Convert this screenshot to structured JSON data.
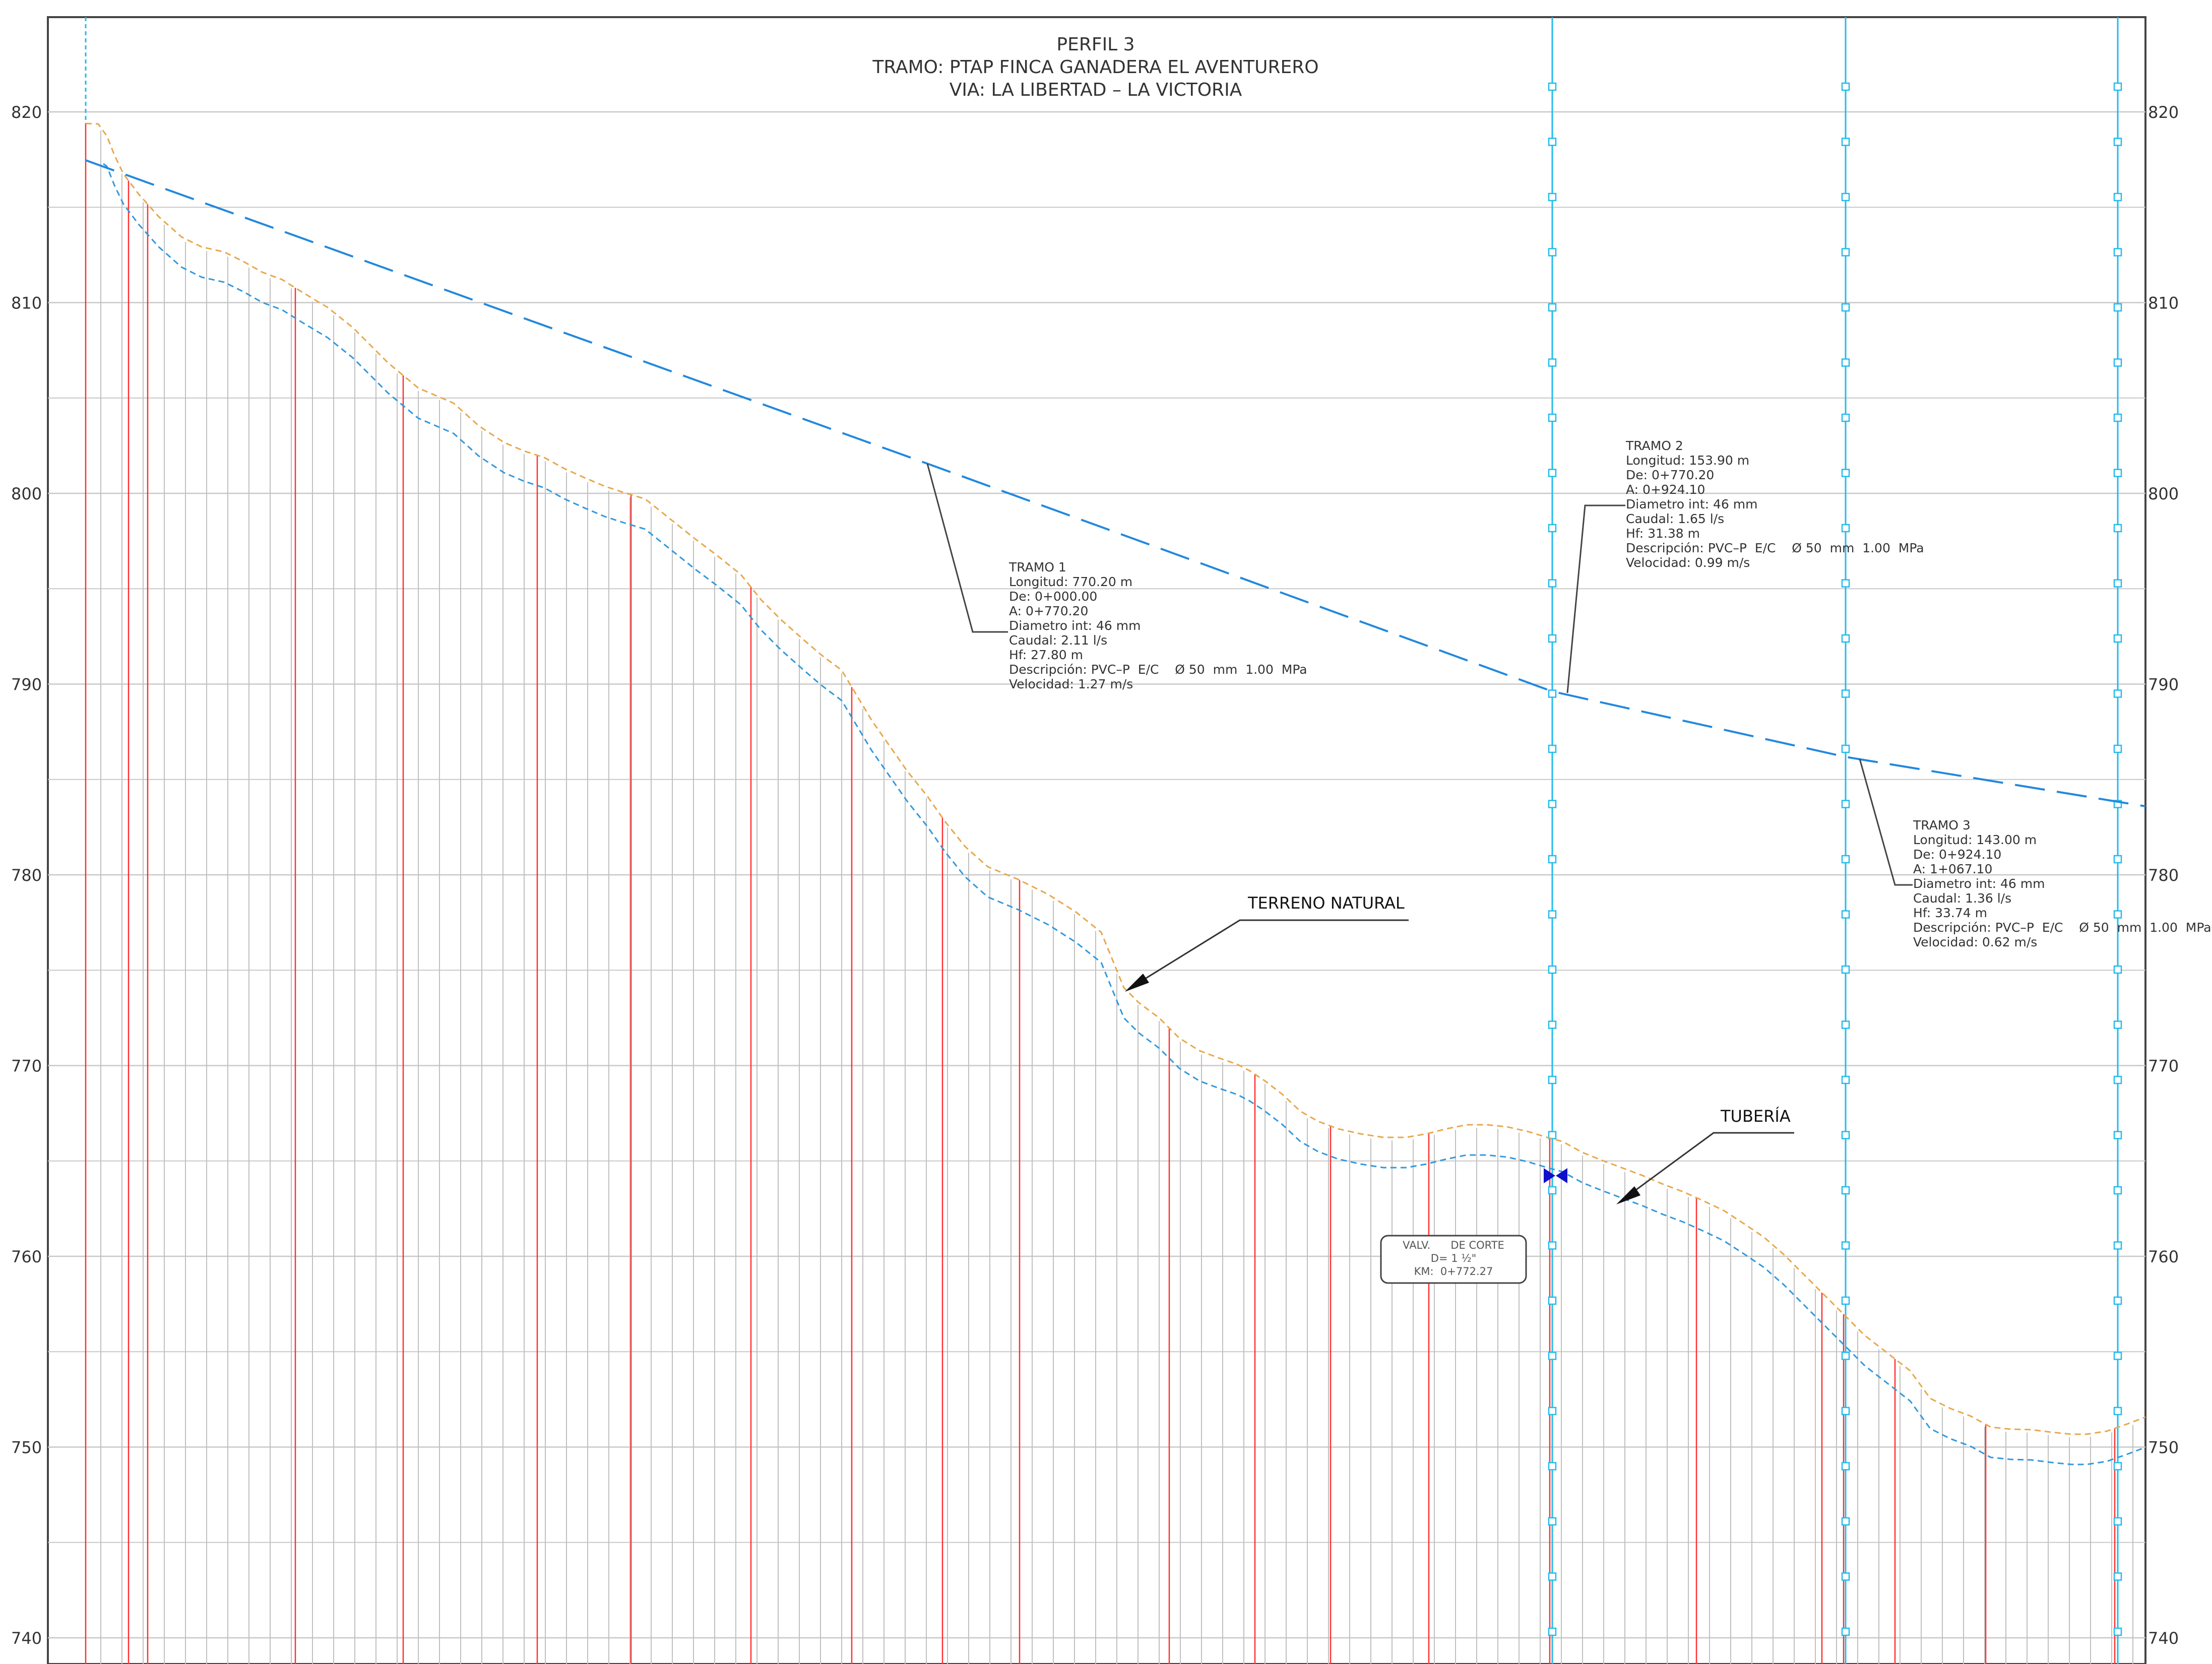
{
  "title": {
    "line1": "PERFIL 3",
    "line2": "TRAMO: PTAP FINCA GANADERA EL AVENTURERO",
    "line3": "VIA: LA LIBERTAD – LA VICTORIA"
  },
  "axis": {
    "elev_min": 740,
    "elev_max": 820,
    "major_ticks": [
      "820",
      "810",
      "800",
      "790",
      "780",
      "770",
      "760",
      "750",
      "740"
    ]
  },
  "colors": {
    "terrain": "#e8a84c",
    "pipe": "#3399dd",
    "gradient": "#2288dd",
    "station_red": "#ff3030",
    "grid": "#c8c8c8",
    "cyan": "#22bbee",
    "valve": "#1010cc"
  },
  "labels": {
    "terreno": "TERRENO NATURAL",
    "tuberia": "TUBERÍA"
  },
  "valve": {
    "line1": "VALV.      DE CORTE",
    "line2": "D= 1 ½\"",
    "line3": "KM:  0+772.27",
    "icon": "valve-icon"
  },
  "tramos": [
    {
      "name": "TRAMO 1",
      "lines": [
        "Longitud:  770.20  m",
        "De:  0+000.00",
        "A:  0+770.20",
        "Diametro  int:  46  mm",
        "Caudal:  2.11  l/s",
        "Hf:  27.80  m",
        "Descripción: PVC–P  E/C    Ø 50  mm  1.00  MPa",
        "Velocidad:  1.27  m/s"
      ]
    },
    {
      "name": "TRAMO 2",
      "lines": [
        "Longitud:  153.90  m",
        "De:  0+770.20",
        "A:  0+924.10",
        "Diametro  int:  46  mm",
        "Caudal:  1.65  l/s",
        "Hf:  31.38  m",
        "Descripción: PVC–P  E/C    Ø 50  mm  1.00  MPa",
        "Velocidad:  0.99  m/s"
      ]
    },
    {
      "name": "TRAMO 3",
      "lines": [
        "Longitud:  143.00  m",
        "De:  0+924.10",
        "A:  1+067.10",
        "Diametro  int:  46  mm",
        "Caudal:  1.36  l/s",
        "Hf:  33.74  m",
        "Descripción: PVC–P  E/C    Ø 50  mm  1.00  MPa",
        "Velocidad:  0.62  m/s"
      ]
    }
  ]
}
